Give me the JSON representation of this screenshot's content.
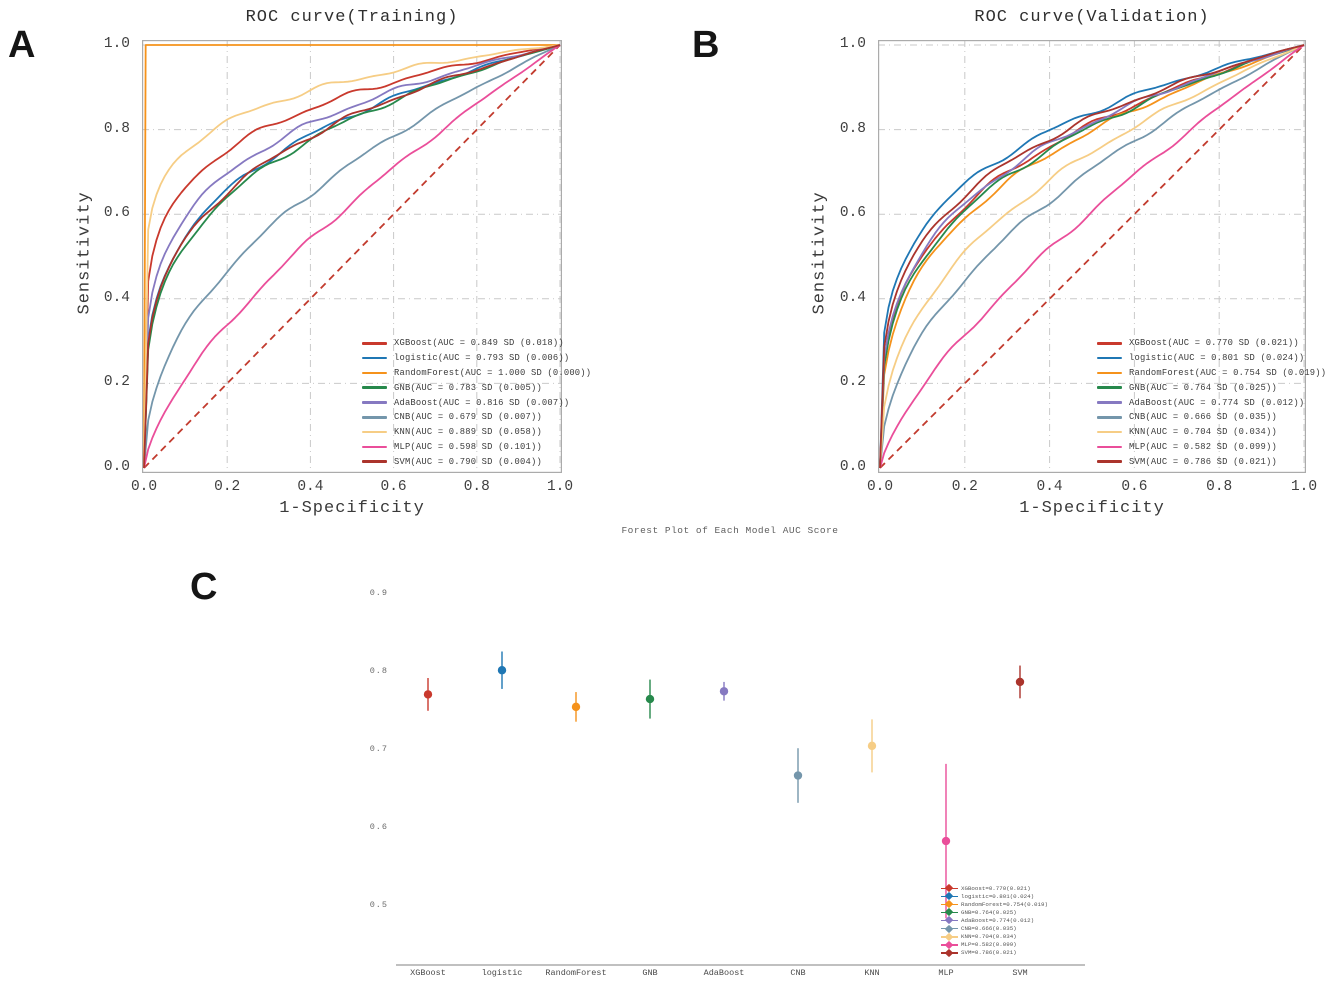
{
  "figure": {
    "panel_a_label": "A",
    "panel_b_label": "B",
    "panel_c_label": "C",
    "background": "#ffffff",
    "diagonal_color": "#c23b2e",
    "grid_color": "#c9c9c9",
    "spine_color": "#ababab"
  },
  "chart_data": [
    {
      "id": "roc_training",
      "type": "line",
      "title": "ROC curve(Training)",
      "xlabel": "1-Specificity",
      "ylabel": "Sensitivity",
      "xlim": [
        0.0,
        1.0
      ],
      "ylim": [
        0.0,
        1.0
      ],
      "xticks": [
        "0.0",
        "0.2",
        "0.4",
        "0.6",
        "0.8",
        "1.0"
      ],
      "yticks": [
        "0.0",
        "0.2",
        "0.4",
        "0.6",
        "0.8",
        "1.0"
      ],
      "grid": "dash-dot",
      "legend_position": "lower right",
      "diagonal": "dashed chance line",
      "series": [
        {
          "name": "XGBoost",
          "auc": 0.849,
          "sd": 0.018,
          "color": "#c9392d",
          "label": "XGBoost(AUC = 0.849 SD (0.018))"
        },
        {
          "name": "logistic",
          "auc": 0.793,
          "sd": 0.006,
          "color": "#1f77b4",
          "label": "logistic(AUC = 0.793 SD (0.006))"
        },
        {
          "name": "RandomForest",
          "auc": 1.0,
          "sd": 0.0,
          "color": "#f5921b",
          "label": "RandomForest(AUC = 1.000 SD (0.000))"
        },
        {
          "name": "GNB",
          "auc": 0.783,
          "sd": 0.005,
          "color": "#27894c",
          "label": "GNB(AUC = 0.783 SD (0.005))"
        },
        {
          "name": "AdaBoost",
          "auc": 0.816,
          "sd": 0.007,
          "color": "#8679c1",
          "label": "AdaBoost(AUC = 0.816 SD (0.007))"
        },
        {
          "name": "CNB",
          "auc": 0.679,
          "sd": 0.007,
          "color": "#7496ab",
          "label": "CNB(AUC = 0.679 SD (0.007))"
        },
        {
          "name": "KNN",
          "auc": 0.889,
          "sd": 0.058,
          "color": "#f6cd85",
          "label": "KNN(AUC = 0.889 SD (0.058))"
        },
        {
          "name": "MLP",
          "auc": 0.598,
          "sd": 0.101,
          "color": "#ea4e9a",
          "label": "MLP(AUC = 0.598 SD (0.101))"
        },
        {
          "name": "SVM",
          "auc": 0.79,
          "sd": 0.004,
          "color": "#ab342c",
          "label": "SVM(AUC = 0.790 SD (0.004))"
        }
      ]
    },
    {
      "id": "roc_validation",
      "type": "line",
      "title": "ROC curve(Validation)",
      "xlabel": "1-Specificity",
      "ylabel": "Sensitivity",
      "xlim": [
        0.0,
        1.0
      ],
      "ylim": [
        0.0,
        1.0
      ],
      "xticks": [
        "0.0",
        "0.2",
        "0.4",
        "0.6",
        "0.8",
        "1.0"
      ],
      "yticks": [
        "0.0",
        "0.2",
        "0.4",
        "0.6",
        "0.8",
        "1.0"
      ],
      "grid": "dash-dot",
      "legend_position": "lower right",
      "diagonal": "dashed chance line",
      "series": [
        {
          "name": "XGBoost",
          "auc": 0.77,
          "sd": 0.021,
          "color": "#c9392d",
          "label": "XGBoost(AUC = 0.770 SD (0.021))"
        },
        {
          "name": "logistic",
          "auc": 0.801,
          "sd": 0.024,
          "color": "#1f77b4",
          "label": "logistic(AUC = 0.801 SD (0.024))"
        },
        {
          "name": "RandomForest",
          "auc": 0.754,
          "sd": 0.019,
          "color": "#f5921b",
          "label": "RandomForest(AUC = 0.754 SD (0.019))"
        },
        {
          "name": "GNB",
          "auc": 0.764,
          "sd": 0.025,
          "color": "#27894c",
          "label": "GNB(AUC = 0.764 SD (0.025))"
        },
        {
          "name": "AdaBoost",
          "auc": 0.774,
          "sd": 0.012,
          "color": "#8679c1",
          "label": "AdaBoost(AUC = 0.774 SD (0.012))"
        },
        {
          "name": "CNB",
          "auc": 0.666,
          "sd": 0.035,
          "color": "#7496ab",
          "label": "CNB(AUC = 0.666 SD (0.035))"
        },
        {
          "name": "KNN",
          "auc": 0.704,
          "sd": 0.034,
          "color": "#f6cd85",
          "label": "KNN(AUC = 0.704 SD (0.034))"
        },
        {
          "name": "MLP",
          "auc": 0.582,
          "sd": 0.099,
          "color": "#ea4e9a",
          "label": "MLP(AUC = 0.582 SD (0.099))"
        },
        {
          "name": "SVM",
          "auc": 0.786,
          "sd": 0.021,
          "color": "#ab342c",
          "label": "SVM(AUC = 0.786 SD (0.021))"
        }
      ]
    },
    {
      "id": "forest_plot",
      "type": "scatter",
      "title": "Forest Plot of Each Model AUC Score",
      "categories": [
        "XGBoost",
        "logistic",
        "RandomForest",
        "GNB",
        "AdaBoost",
        "CNB",
        "KNN",
        "MLP",
        "SVM"
      ],
      "values": [
        0.77,
        0.801,
        0.754,
        0.764,
        0.774,
        0.666,
        0.704,
        0.582,
        0.786
      ],
      "sd": [
        0.021,
        0.024,
        0.019,
        0.025,
        0.012,
        0.035,
        0.034,
        0.099,
        0.021
      ],
      "colors": [
        "#c9392d",
        "#1f77b4",
        "#f5921b",
        "#27894c",
        "#8679c1",
        "#7496ab",
        "#f6cd85",
        "#ea4e9a",
        "#ab342c"
      ],
      "yticks": [
        "0.9",
        "0.8",
        "0.7",
        "0.6",
        "0.5"
      ],
      "ylim": [
        0.42,
        0.93
      ],
      "grid": "off",
      "legend_position": "lower right",
      "legend_labels": [
        "XGBoost=0.770(0.021)",
        "logistic=0.801(0.024)",
        "RandomForest=0.754(0.019)",
        "GNB=0.764(0.025)",
        "AdaBoost=0.774(0.012)",
        "CNB=0.666(0.035)",
        "KNN=0.704(0.034)",
        "MLP=0.582(0.099)",
        "SVM=0.786(0.021)"
      ]
    }
  ]
}
